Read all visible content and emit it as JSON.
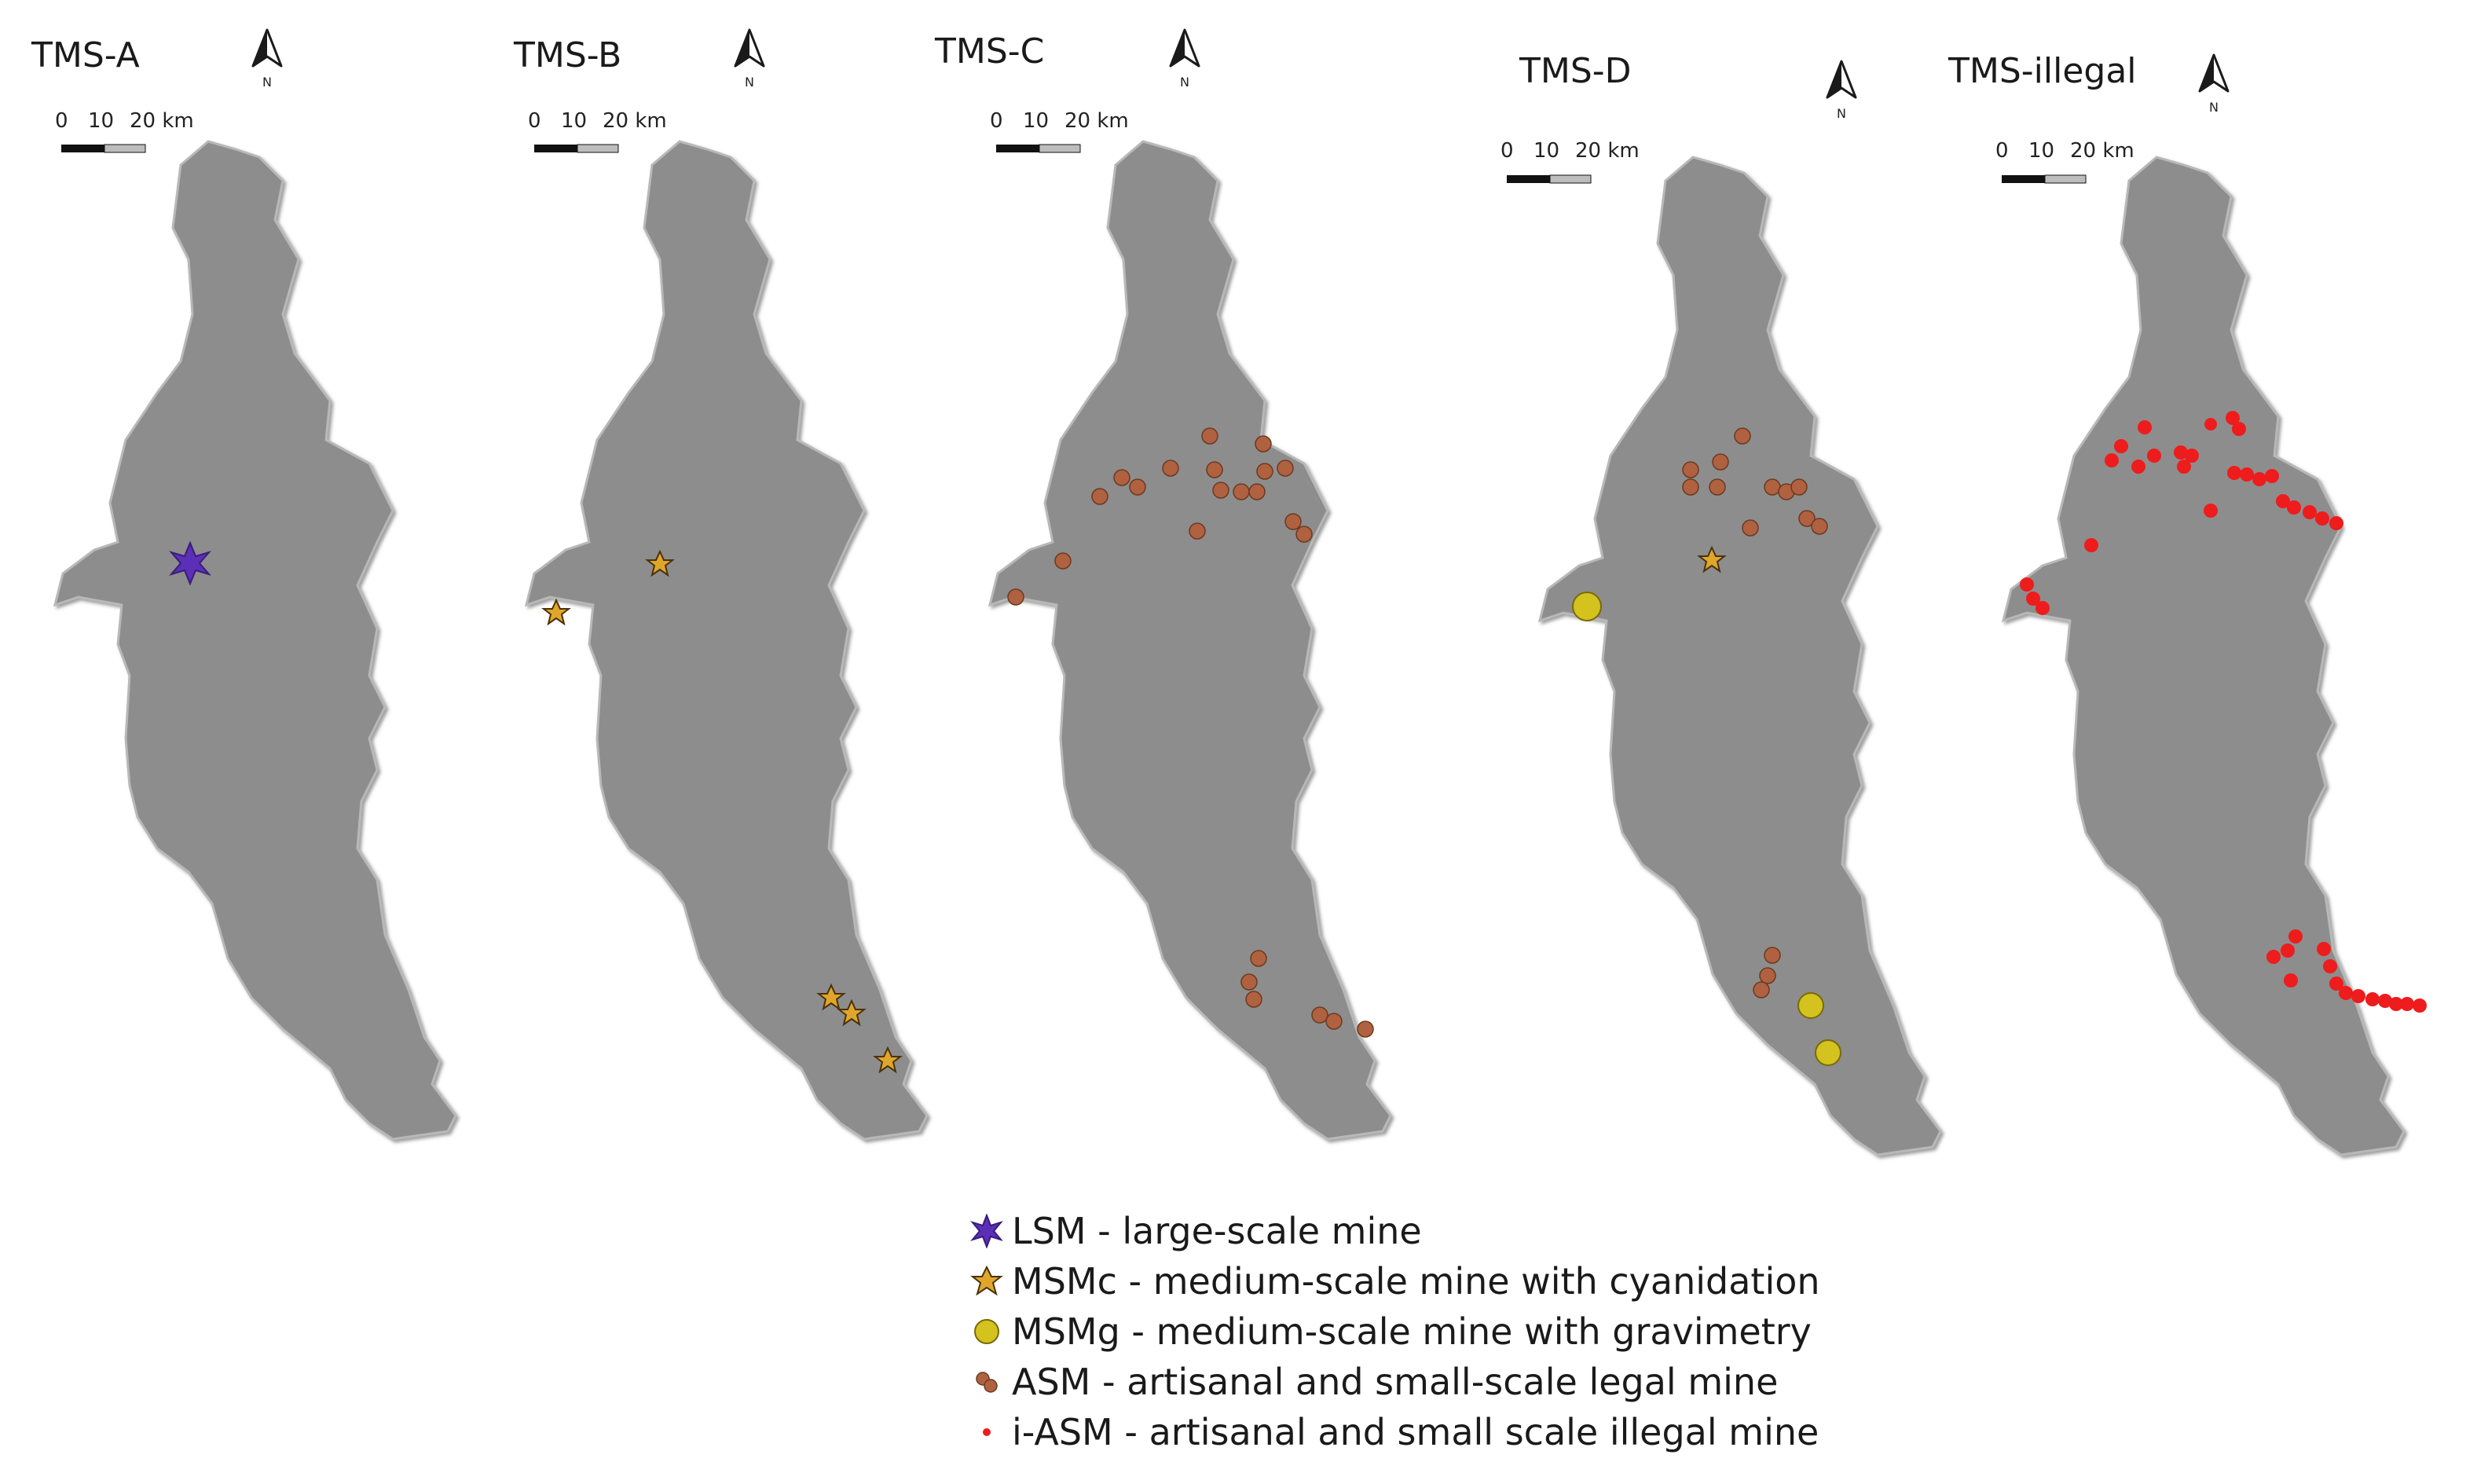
{
  "panels": [
    {
      "title": "TMS-A",
      "scale": {
        "t0": "0",
        "t1": "10",
        "t2": "20 km"
      }
    },
    {
      "title": "TMS-B",
      "scale": {
        "t0": "0",
        "t1": "10",
        "t2": "20 km"
      }
    },
    {
      "title": "TMS-C",
      "scale": {
        "t0": "0",
        "t1": "10",
        "t2": "20 km"
      }
    },
    {
      "title": "TMS-D",
      "scale": {
        "t0": "0",
        "t1": "10",
        "t2": "20 km"
      }
    },
    {
      "title": "TMS-illegal",
      "scale": {
        "t0": "0",
        "t1": "10",
        "t2": "20 km"
      }
    }
  ],
  "north_arrow": {
    "label": "N"
  },
  "legend": [
    {
      "key": "LSM",
      "label": "LSM - large-scale mine",
      "color": "#5b2fb8",
      "symbol": "starburst"
    },
    {
      "key": "MSMc",
      "label": "MSMc - medium-scale mine with cyanidation",
      "color": "#e0a62c",
      "symbol": "star"
    },
    {
      "key": "MSMg",
      "label": "MSMg - medium-scale mine with gravimetry",
      "color": "#d4c21e",
      "symbol": "blob"
    },
    {
      "key": "ASM",
      "label": "ASM - artisanal and small-scale legal mine",
      "color": "#b0613f",
      "symbol": "cluster"
    },
    {
      "key": "iASM",
      "label": "i-ASM - artisanal and small scale illegal mine",
      "color": "#ee1c1c",
      "symbol": "dot"
    }
  ],
  "colors": {
    "region": "#8d8d8d",
    "region_edge": "#b8b8b8"
  }
}
